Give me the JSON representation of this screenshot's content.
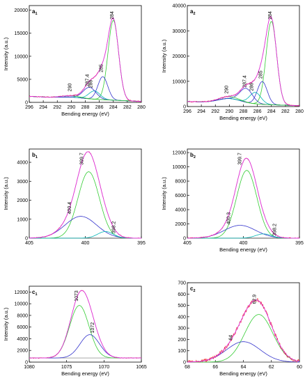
{
  "chart_data": [
    {
      "id": "a1",
      "label": "a",
      "sub": "1",
      "type": "line",
      "xlabel": "Bending energy (eV)",
      "ylabel": "Intensity (a.u.)",
      "xlim": [
        296,
        280
      ],
      "ylim": [
        0,
        21000
      ],
      "xticks": [
        296,
        294,
        292,
        290,
        288,
        286,
        284,
        282,
        280
      ],
      "yticks": [
        0,
        5000,
        10000,
        15000,
        20000
      ],
      "baseline": {
        "start": 1300,
        "end": 200,
        "bump_center": 290,
        "bump_amp": 250,
        "bump_width": 1.5
      },
      "peaks": [
        {
          "name": "284",
          "center": 284.0,
          "height": 17300,
          "width": 0.75
        },
        {
          "name": "285",
          "center": 285.5,
          "height": 5000,
          "width": 0.7
        },
        {
          "name": "286",
          "center": 286.7,
          "height": 1800,
          "width": 0.8
        },
        {
          "name": "287.4",
          "center": 287.4,
          "height": 2500,
          "width": 0.9
        },
        {
          "name": "290",
          "center": 290.0,
          "height": 300,
          "width": 1.3
        }
      ]
    },
    {
      "id": "a2",
      "label": "a",
      "sub": "2",
      "type": "line",
      "xlabel": "Bending energy (eV)",
      "ylabel": "Intensity (a.u.)",
      "xlim": [
        296,
        280
      ],
      "ylim": [
        0,
        40000
      ],
      "xticks": [
        296,
        294,
        292,
        290,
        288,
        286,
        284,
        282,
        280
      ],
      "yticks": [
        0,
        10000,
        20000,
        30000,
        40000
      ],
      "baseline": {
        "start": 2000,
        "end": 300,
        "bump_center": 290,
        "bump_amp": 1800,
        "bump_width": 1.6
      },
      "peaks": [
        {
          "name": "284",
          "center": 284.0,
          "height": 33000,
          "width": 0.75
        },
        {
          "name": "285",
          "center": 285.3,
          "height": 9000,
          "width": 0.7
        },
        {
          "name": "286",
          "center": 286.3,
          "height": 4500,
          "width": 0.8
        },
        {
          "name": "287.4",
          "center": 287.6,
          "height": 5500,
          "width": 0.9
        },
        {
          "name": "290",
          "center": 290.0,
          "height": 800,
          "width": 1.3
        }
      ]
    },
    {
      "id": "b1",
      "label": "b",
      "sub": "1",
      "type": "line",
      "xlabel": "",
      "ylabel": "Intensity (a.u.)",
      "xlim": [
        405,
        395
      ],
      "ylim": [
        0,
        4700
      ],
      "xticks": [
        405,
        400,
        395
      ],
      "yticks": [
        0,
        1000,
        2000,
        3000,
        4000
      ],
      "baseline": {
        "start": 0,
        "end": 0,
        "bump_center": 400,
        "bump_amp": 0,
        "bump_width": 1
      },
      "peaks": [
        {
          "name": "399.7",
          "center": 399.7,
          "height": 3500,
          "width": 0.95
        },
        {
          "name": "400.4",
          "center": 400.4,
          "height": 1150,
          "width": 1.4
        },
        {
          "name": "398.2",
          "center": 398.2,
          "height": 350,
          "width": 0.7
        }
      ]
    },
    {
      "id": "b2",
      "label": "b",
      "sub": "2",
      "type": "line",
      "xlabel": "Bending energy (eV)",
      "ylabel": "Intensity (a.u.)",
      "xlim": [
        405,
        395
      ],
      "ylim": [
        0,
        12500
      ],
      "xticks": [
        405,
        400,
        395
      ],
      "yticks": [
        0,
        2000,
        4000,
        6000,
        8000,
        10000,
        12000
      ],
      "baseline": {
        "start": 0,
        "end": 0,
        "bump_center": 400,
        "bump_amp": 0,
        "bump_width": 1
      },
      "peaks": [
        {
          "name": "399.7",
          "center": 399.7,
          "height": 9500,
          "width": 0.9
        },
        {
          "name": "400.3",
          "center": 400.3,
          "height": 1800,
          "width": 1.4
        },
        {
          "name": "398.2",
          "center": 398.2,
          "height": 600,
          "width": 0.7
        }
      ]
    },
    {
      "id": "c1",
      "label": "c",
      "sub": "1",
      "type": "line",
      "xlabel": "Bending energy (eV)",
      "ylabel": "Intensity (a.u.)",
      "xlim": [
        1080,
        1065
      ],
      "ylim": [
        0,
        13000
      ],
      "xticks": [
        1080,
        1075,
        1070,
        1065
      ],
      "yticks": [
        0,
        2000,
        4000,
        6000,
        8000,
        10000,
        12000
      ],
      "baseline": {
        "start": 700,
        "end": 700,
        "bump_center": 1073,
        "bump_amp": 0,
        "bump_width": 1
      },
      "peaks": [
        {
          "name": "1073",
          "center": 1073.3,
          "height": 9000,
          "width": 1.3
        },
        {
          "name": "1072",
          "center": 1071.9,
          "height": 4000,
          "width": 1.3
        }
      ]
    },
    {
      "id": "c2",
      "label": "c",
      "sub": "2",
      "type": "line",
      "xlabel": "Bending energy (eV)",
      "ylabel": "",
      "xlim": [
        68,
        60
      ],
      "ylim": [
        0,
        700
      ],
      "xticks": [
        68,
        66,
        64,
        62,
        60
      ],
      "yticks": [
        0,
        100,
        200,
        300,
        400,
        500,
        600,
        700
      ],
      "baseline": {
        "start": 0,
        "end": 0,
        "bump_center": 64,
        "bump_amp": 0,
        "bump_width": 1
      },
      "peaks": [
        {
          "name": "62.9",
          "center": 62.9,
          "height": 420,
          "width": 1.0
        },
        {
          "name": "64",
          "center": 64.0,
          "height": 180,
          "width": 1.2
        }
      ]
    }
  ],
  "colors": {
    "experimental": "#ee1c1c",
    "envelope": "#dd33dd",
    "component_main": "#33cc33",
    "component_alt": "#3333cc",
    "component_third": "#00b4b4",
    "baseline": "#777777",
    "axis": "#000000"
  }
}
